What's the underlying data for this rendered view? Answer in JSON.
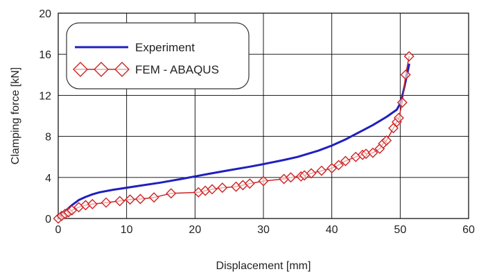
{
  "chart_data": {
    "type": "line",
    "xlabel": "Displacement [mm]",
    "ylabel": "Clamping force [kN]",
    "xlim": [
      0,
      60
    ],
    "ylim": [
      0,
      20
    ],
    "xticks": [
      "0",
      "10",
      "20",
      "30",
      "40",
      "50",
      "60"
    ],
    "yticks": [
      "0",
      "4",
      "8",
      "12",
      "16",
      "20"
    ],
    "grid": true,
    "legend_position": "top-left",
    "series": [
      {
        "name": "Experiment",
        "color": "#1f1fbf",
        "style": "line",
        "x": [
          0,
          1,
          2,
          3,
          4,
          5,
          6,
          8,
          10,
          12,
          15,
          18,
          20,
          22,
          25,
          28,
          30,
          33,
          35,
          38,
          40,
          42,
          44,
          46,
          48,
          49.5,
          50,
          50.5,
          51,
          51.3
        ],
        "y": [
          0,
          0.7,
          1.3,
          1.8,
          2.1,
          2.35,
          2.55,
          2.8,
          3.0,
          3.2,
          3.5,
          3.85,
          4.1,
          4.35,
          4.7,
          5.05,
          5.3,
          5.7,
          6.0,
          6.6,
          7.1,
          7.7,
          8.4,
          9.1,
          9.9,
          10.6,
          11.2,
          12.5,
          14.0,
          15.0
        ]
      },
      {
        "name": "FEM - ABAQUS",
        "color": "#cc2222",
        "style": "line+diamond",
        "x": [
          0,
          0.5,
          1,
          1.5,
          2,
          3,
          4,
          5,
          7,
          9,
          10.5,
          12,
          14,
          16.5,
          20.5,
          21.5,
          22.5,
          24,
          26,
          27,
          28,
          30,
          33,
          34,
          35.5,
          36,
          37,
          38.5,
          40,
          41,
          42,
          43.5,
          44.5,
          45,
          46,
          47,
          47.5,
          48,
          49,
          49.5,
          49.8,
          50.3,
          50.8,
          51.3
        ],
        "y": [
          0,
          0.25,
          0.45,
          0.6,
          0.8,
          1.1,
          1.3,
          1.4,
          1.55,
          1.7,
          1.85,
          1.9,
          2.05,
          2.45,
          2.55,
          2.7,
          2.85,
          3.0,
          3.1,
          3.25,
          3.4,
          3.65,
          3.85,
          4.0,
          4.1,
          4.2,
          4.4,
          4.65,
          4.9,
          5.2,
          5.6,
          6.0,
          6.2,
          6.3,
          6.4,
          6.8,
          7.3,
          7.6,
          8.8,
          9.4,
          9.8,
          11.3,
          14.0,
          15.8
        ]
      }
    ]
  }
}
